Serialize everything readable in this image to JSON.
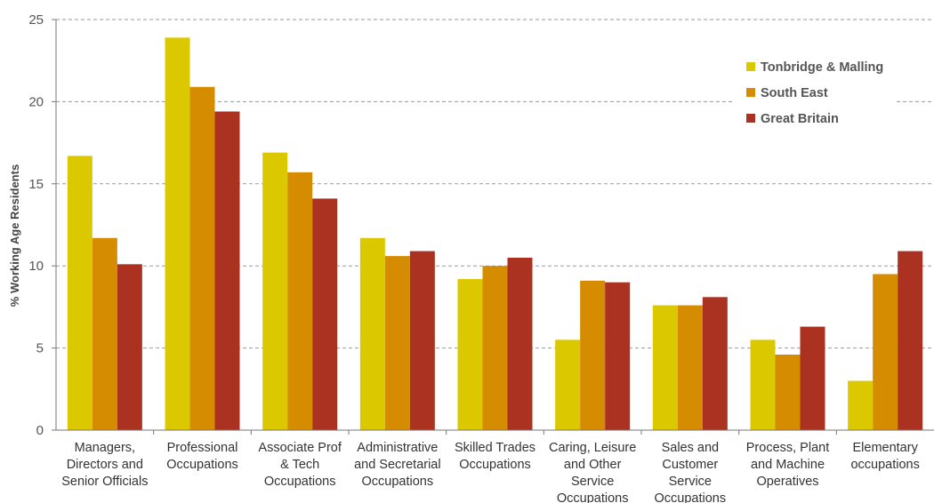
{
  "chart_data": {
    "type": "bar",
    "ylabel": "% Working Age Residents",
    "xlabel": "",
    "ylim": [
      0,
      25
    ],
    "yticks": [
      0,
      5,
      10,
      15,
      20,
      25
    ],
    "grid": true,
    "legend_position": "top-right",
    "categories": [
      [
        "Managers,",
        "Directors and",
        "Senior Officials"
      ],
      [
        "Professional",
        "Occupations"
      ],
      [
        "Associate Prof",
        "& Tech",
        "Occupations"
      ],
      [
        "Administrative",
        "and Secretarial",
        "Occupations"
      ],
      [
        "Skilled Trades",
        "Occupations"
      ],
      [
        "Caring, Leisure",
        "and Other",
        "Service",
        "Occupations"
      ],
      [
        "Sales and",
        "Customer",
        "Service",
        "Occupations"
      ],
      [
        "Process, Plant",
        "and Machine",
        "Operatives"
      ],
      [
        "Elementary",
        "occupations"
      ]
    ],
    "series": [
      {
        "name": "Tonbridge & Malling",
        "color": "#dcc800",
        "values": [
          16.7,
          23.9,
          16.9,
          11.7,
          9.2,
          5.5,
          7.6,
          5.5,
          3.0
        ]
      },
      {
        "name": "South East",
        "color": "#d68c00",
        "values": [
          11.7,
          20.9,
          15.7,
          10.6,
          10.0,
          9.1,
          7.6,
          4.6,
          9.5
        ]
      },
      {
        "name": "Great Britain",
        "color": "#ab3220",
        "values": [
          10.1,
          19.4,
          14.1,
          10.9,
          10.5,
          9.0,
          8.1,
          6.3,
          10.9
        ]
      }
    ]
  }
}
